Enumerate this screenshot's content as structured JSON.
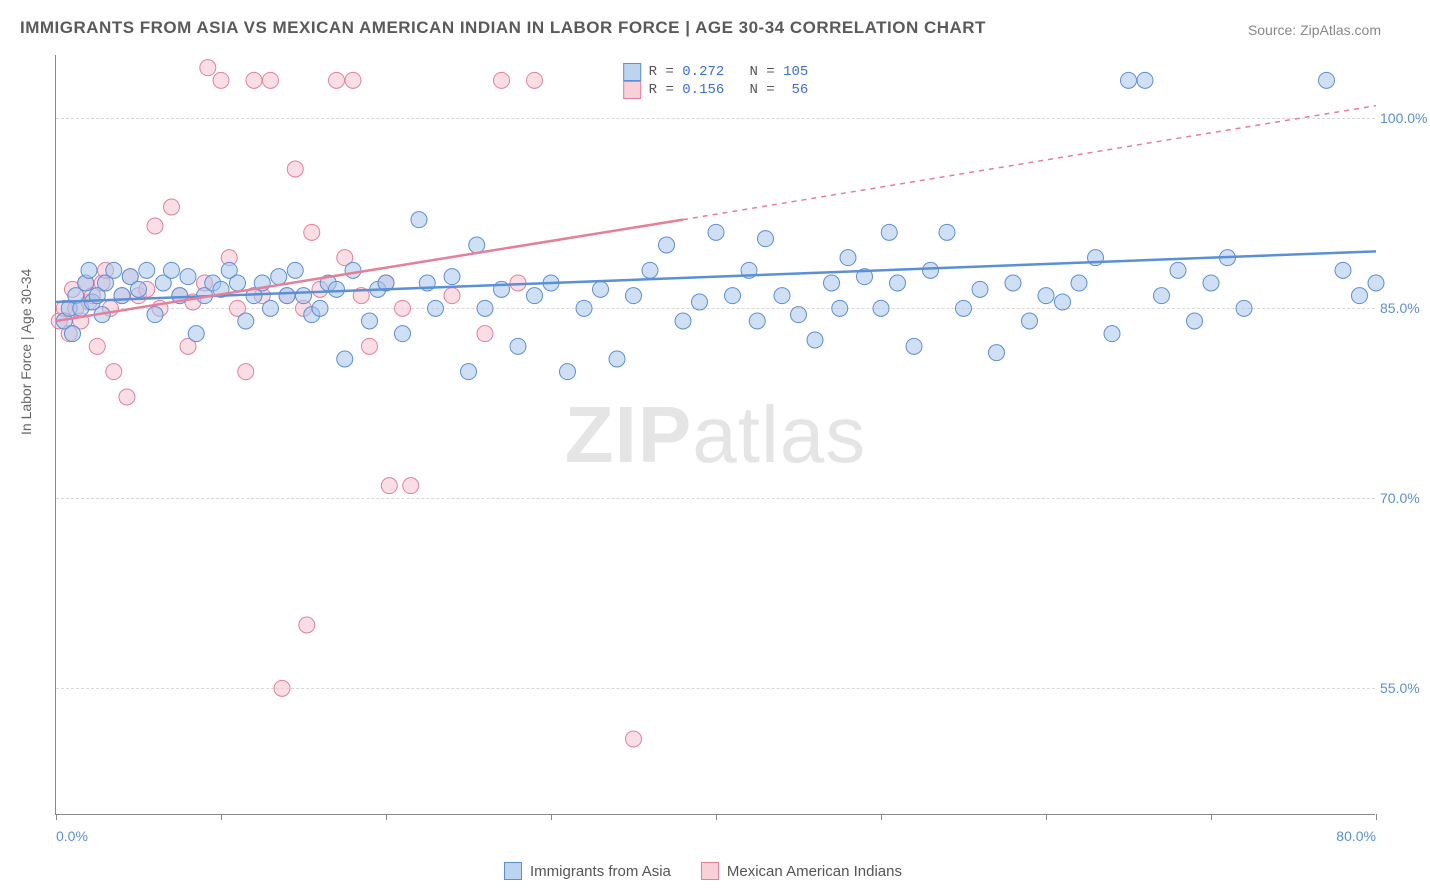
{
  "title": "IMMIGRANTS FROM ASIA VS MEXICAN AMERICAN INDIAN IN LABOR FORCE | AGE 30-34 CORRELATION CHART",
  "source_label": "Source: ",
  "source_name": "ZipAtlas.com",
  "y_axis_label": "In Labor Force | Age 30-34",
  "watermark_bold": "ZIP",
  "watermark_light": "atlas",
  "chart": {
    "type": "scatter",
    "x_range": [
      0,
      80
    ],
    "y_range": [
      45,
      105
    ],
    "x_ticks": [
      0,
      20,
      40,
      60,
      80
    ],
    "x_tick_labels": [
      "0.0%",
      "",
      "",
      "",
      "80.0%"
    ],
    "x_minor_ticks": [
      10,
      30,
      50,
      70
    ],
    "y_ticks": [
      55,
      70,
      85,
      100
    ],
    "y_tick_labels": [
      "55.0%",
      "70.0%",
      "85.0%",
      "100.0%"
    ],
    "grid_color": "#d8d8d8",
    "background_color": "#ffffff",
    "axis_color": "#888888",
    "marker_radius": 8,
    "marker_opacity": 0.55,
    "series": [
      {
        "name": "Immigrants from Asia",
        "color_fill": "#a8c7ec",
        "color_stroke": "#5b8fd6",
        "legend_swatch_fill": "#bcd4f0",
        "legend_swatch_stroke": "#5b8fd6",
        "R": "0.272",
        "N": "105",
        "trend": {
          "x1": 0,
          "y1": 85.5,
          "x2": 80,
          "y2": 89.5,
          "dash_from_x": 80
        },
        "points": [
          [
            0.5,
            84
          ],
          [
            0.8,
            85
          ],
          [
            1,
            83
          ],
          [
            1.2,
            86
          ],
          [
            1.5,
            85
          ],
          [
            1.8,
            87
          ],
          [
            2,
            88
          ],
          [
            2.2,
            85.5
          ],
          [
            2.5,
            86
          ],
          [
            2.8,
            84.5
          ],
          [
            3,
            87
          ],
          [
            3.5,
            88
          ],
          [
            4,
            86
          ],
          [
            4.5,
            87.5
          ],
          [
            5,
            86.5
          ],
          [
            5.5,
            88
          ],
          [
            6,
            84.5
          ],
          [
            6.5,
            87
          ],
          [
            7,
            88
          ],
          [
            7.5,
            86
          ],
          [
            8,
            87.5
          ],
          [
            8.5,
            83
          ],
          [
            9,
            86
          ],
          [
            9.5,
            87
          ],
          [
            10,
            86.5
          ],
          [
            10.5,
            88
          ],
          [
            11,
            87
          ],
          [
            11.5,
            84
          ],
          [
            12,
            86
          ],
          [
            12.5,
            87
          ],
          [
            13,
            85
          ],
          [
            13.5,
            87.5
          ],
          [
            14,
            86
          ],
          [
            14.5,
            88
          ],
          [
            15,
            86
          ],
          [
            15.5,
            84.5
          ],
          [
            16,
            85
          ],
          [
            16.5,
            87
          ],
          [
            17,
            86.5
          ],
          [
            17.5,
            81
          ],
          [
            18,
            88
          ],
          [
            19,
            84
          ],
          [
            19.5,
            86.5
          ],
          [
            20,
            87
          ],
          [
            21,
            83
          ],
          [
            22,
            92
          ],
          [
            22.5,
            87
          ],
          [
            23,
            85
          ],
          [
            24,
            87.5
          ],
          [
            25,
            80
          ],
          [
            25.5,
            90
          ],
          [
            26,
            85
          ],
          [
            27,
            86.5
          ],
          [
            28,
            82
          ],
          [
            29,
            86
          ],
          [
            30,
            87
          ],
          [
            31,
            80
          ],
          [
            32,
            85
          ],
          [
            33,
            86.5
          ],
          [
            34,
            81
          ],
          [
            35,
            86
          ],
          [
            36,
            88
          ],
          [
            37,
            90
          ],
          [
            38,
            84
          ],
          [
            39,
            85.5
          ],
          [
            40,
            91
          ],
          [
            41,
            86
          ],
          [
            42,
            88
          ],
          [
            42.5,
            84
          ],
          [
            43,
            90.5
          ],
          [
            44,
            86
          ],
          [
            45,
            84.5
          ],
          [
            46,
            82.5
          ],
          [
            47,
            87
          ],
          [
            47.5,
            85
          ],
          [
            48,
            89
          ],
          [
            49,
            87.5
          ],
          [
            50,
            85
          ],
          [
            50.5,
            91
          ],
          [
            51,
            87
          ],
          [
            52,
            82
          ],
          [
            53,
            88
          ],
          [
            54,
            91
          ],
          [
            55,
            85
          ],
          [
            56,
            86.5
          ],
          [
            57,
            81.5
          ],
          [
            58,
            87
          ],
          [
            59,
            84
          ],
          [
            60,
            86
          ],
          [
            61,
            85.5
          ],
          [
            62,
            87
          ],
          [
            63,
            89
          ],
          [
            64,
            83
          ],
          [
            65,
            103
          ],
          [
            66,
            103
          ],
          [
            67,
            86
          ],
          [
            68,
            88
          ],
          [
            69,
            84
          ],
          [
            70,
            87
          ],
          [
            71,
            89
          ],
          [
            72,
            85
          ],
          [
            77,
            103
          ],
          [
            78,
            88
          ],
          [
            79,
            86
          ],
          [
            80,
            87
          ]
        ]
      },
      {
        "name": "Mexican American Indians",
        "color_fill": "#f5c2cf",
        "color_stroke": "#e57f9a",
        "legend_swatch_fill": "#f8d0da",
        "legend_swatch_stroke": "#e57f9a",
        "R": "0.156",
        "N": "56",
        "trend": {
          "x1": 0,
          "y1": 84,
          "x2": 38,
          "y2": 92,
          "dash_from_x": 38,
          "x3": 80,
          "y3": 101
        },
        "points": [
          [
            0.2,
            84
          ],
          [
            0.5,
            85
          ],
          [
            0.8,
            83
          ],
          [
            1,
            86.5
          ],
          [
            1.2,
            85
          ],
          [
            1.5,
            84
          ],
          [
            1.8,
            87
          ],
          [
            2,
            85.5
          ],
          [
            2.2,
            86
          ],
          [
            2.5,
            82
          ],
          [
            2.8,
            87
          ],
          [
            3,
            88
          ],
          [
            3.3,
            85
          ],
          [
            3.5,
            80
          ],
          [
            4,
            86
          ],
          [
            4.3,
            78
          ],
          [
            4.5,
            87.5
          ],
          [
            5,
            86
          ],
          [
            5.5,
            86.5
          ],
          [
            6,
            91.5
          ],
          [
            6.3,
            85
          ],
          [
            7,
            93
          ],
          [
            7.5,
            86
          ],
          [
            8,
            82
          ],
          [
            8.3,
            85.5
          ],
          [
            9,
            87
          ],
          [
            9.2,
            104
          ],
          [
            10,
            103
          ],
          [
            10.5,
            89
          ],
          [
            11,
            85
          ],
          [
            11.5,
            80
          ],
          [
            12,
            103
          ],
          [
            12.5,
            86
          ],
          [
            13,
            103
          ],
          [
            13.7,
            55
          ],
          [
            14,
            86
          ],
          [
            14.5,
            96
          ],
          [
            15,
            85
          ],
          [
            15.2,
            60
          ],
          [
            15.5,
            91
          ],
          [
            16,
            86.5
          ],
          [
            17,
            103
          ],
          [
            17.5,
            89
          ],
          [
            18,
            103
          ],
          [
            18.5,
            86
          ],
          [
            19,
            82
          ],
          [
            20,
            87
          ],
          [
            20.2,
            71
          ],
          [
            21,
            85
          ],
          [
            21.5,
            71
          ],
          [
            24,
            86
          ],
          [
            26,
            83
          ],
          [
            27,
            103
          ],
          [
            28,
            87
          ],
          [
            29,
            103
          ],
          [
            35,
            51
          ]
        ]
      }
    ]
  },
  "legend_bottom": [
    {
      "label": "Immigrants from Asia",
      "fill": "#bcd4f0",
      "stroke": "#5b8fd6"
    },
    {
      "label": "Mexican American Indians",
      "fill": "#f8d0da",
      "stroke": "#e57f9a"
    }
  ]
}
